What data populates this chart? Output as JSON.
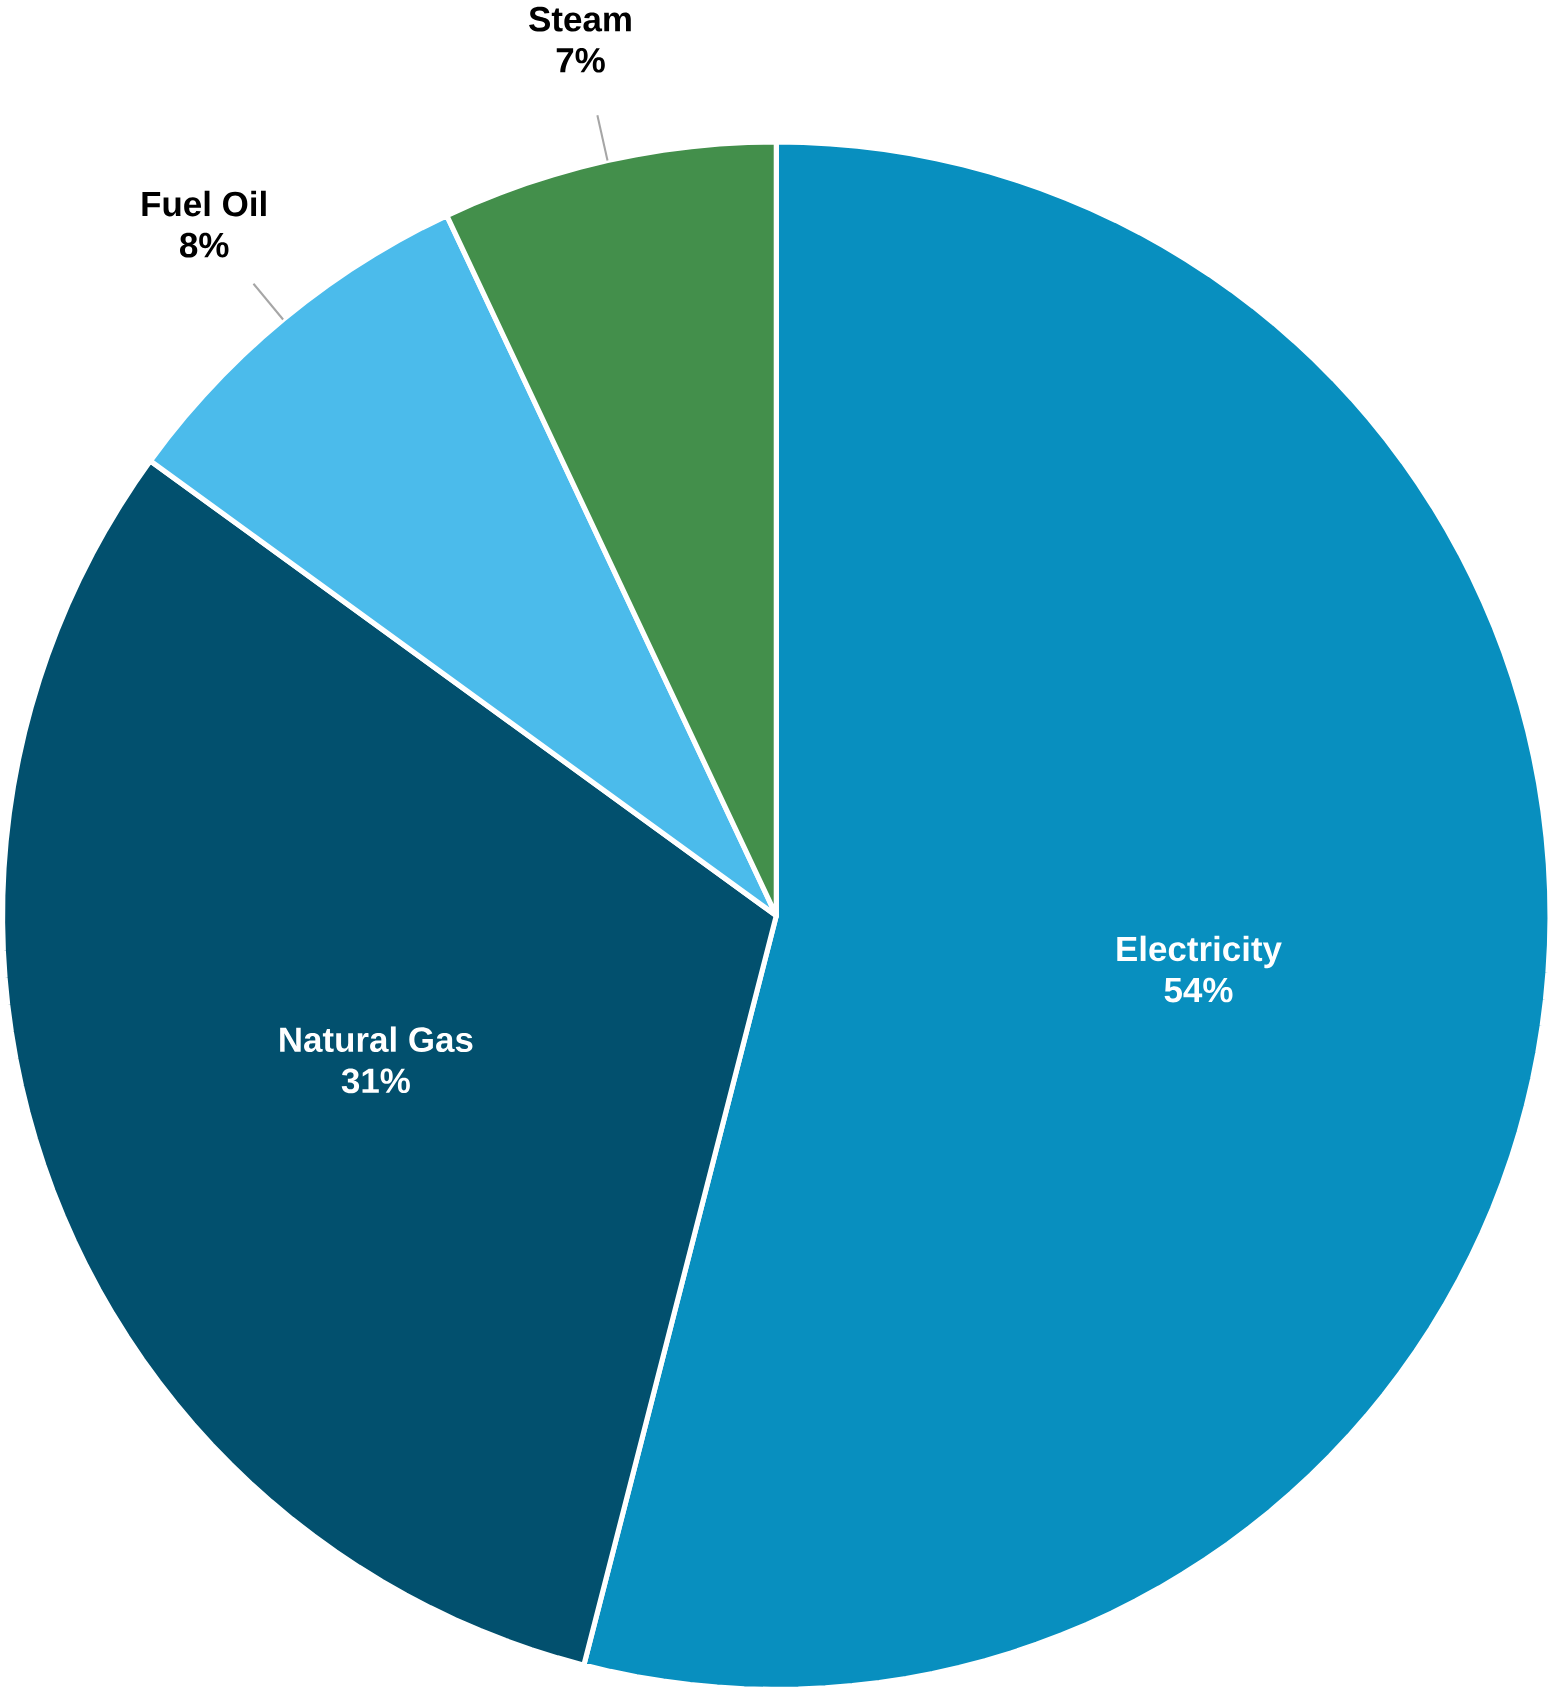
{
  "chart_data": {
    "type": "pie",
    "categories": [
      "Electricity",
      "Natural Gas",
      "Fuel Oil",
      "Steam"
    ],
    "values": [
      54,
      31,
      8,
      7
    ],
    "colors": [
      "#088fbf",
      "#02506e",
      "#4bbbeb",
      "#438f4b"
    ],
    "value_labels": [
      "54%",
      "31%",
      "8%",
      "7%"
    ]
  }
}
